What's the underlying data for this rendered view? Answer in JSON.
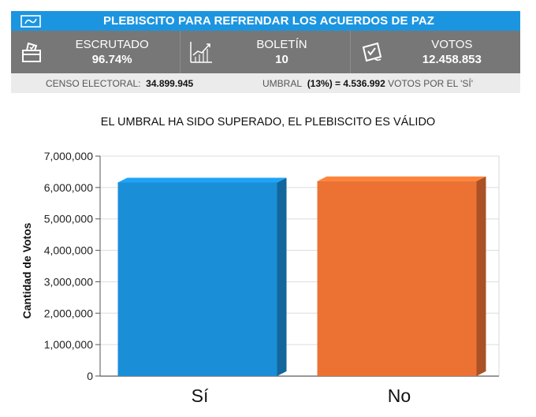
{
  "header": {
    "title": "PLEBISCITO PARA REFRENDAR LOS ACUERDOS DE PAZ",
    "logo_icon": "colombia-logo-icon",
    "accent_color": "#1c95e0"
  },
  "stats": {
    "escrutado": {
      "label": "ESCRUTADO",
      "value": "96.74%",
      "icon": "ballot-box-icon"
    },
    "boletin": {
      "label": "BOLETÍN",
      "value": "10",
      "icon": "growth-chart-icon"
    },
    "votos": {
      "label": "VOTOS",
      "value": "12.458.853",
      "icon": "ballot-hand-icon"
    }
  },
  "info": {
    "censo_label": "CENSO ELECTORAL:",
    "censo_value": "34.899.945",
    "umbral_label": "UMBRAL",
    "umbral_value": "(13%) = 4.536.992",
    "umbral_suffix": "VOTOS POR EL 'SÍ'"
  },
  "chart_data": {
    "type": "bar",
    "title": "EL UMBRAL HA SIDO SUPERADO, EL PLEBISCITO ES VÁLIDO",
    "ylabel": "Cantidad de Votos",
    "xlabel": "",
    "categories": [
      "Sí",
      "No"
    ],
    "values": [
      6160000,
      6200000
    ],
    "colors": [
      "#1a8fd8",
      "#ec7233"
    ],
    "ylim": [
      0,
      7000000
    ],
    "yticks": [
      0,
      1000000,
      2000000,
      3000000,
      4000000,
      5000000,
      6000000,
      7000000
    ],
    "ytick_labels": [
      "0",
      "1,000,000",
      "2,000,000",
      "3,000,000",
      "4,000,000",
      "5,000,000",
      "6,000,000",
      "7,000,000"
    ],
    "grid": true,
    "legend": false
  }
}
